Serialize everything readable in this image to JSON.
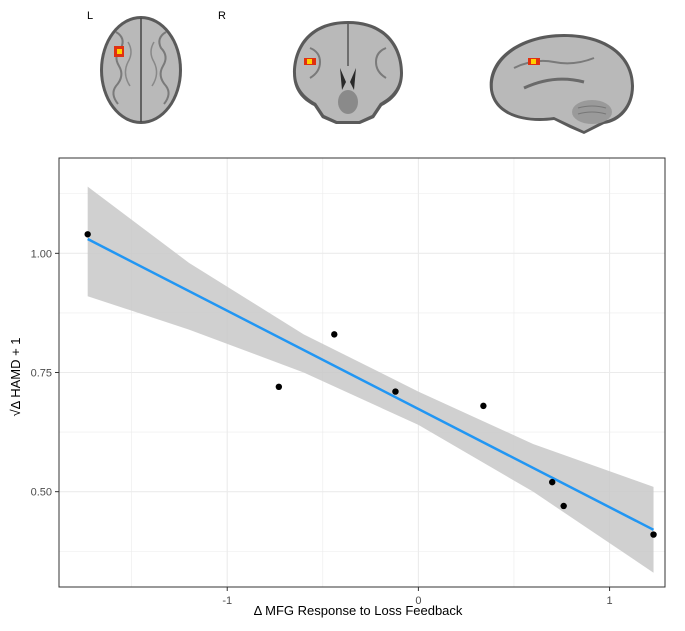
{
  "brain_panel": {
    "left_label": "L",
    "right_label": "R",
    "slices": [
      "axial-slice",
      "coronal-slice",
      "sagittal-slice"
    ]
  },
  "chart_data": {
    "type": "scatter",
    "title": "",
    "xlabel": "Δ MFG Response to Loss Feedback",
    "ylabel": "√Δ HAMD + 1",
    "xlim": [
      -1.88,
      1.29
    ],
    "ylim": [
      0.3,
      1.2
    ],
    "x_ticks": [
      -1,
      0,
      1
    ],
    "x_tick_labels": [
      "-1",
      "0",
      "1"
    ],
    "y_ticks": [
      0.5,
      0.75,
      1.0
    ],
    "y_tick_labels": [
      "0.50",
      "0.75",
      "1.00"
    ],
    "grid": true,
    "points": [
      {
        "x": -1.73,
        "y": 1.04
      },
      {
        "x": -0.73,
        "y": 0.72
      },
      {
        "x": -0.44,
        "y": 0.83
      },
      {
        "x": -0.12,
        "y": 0.71
      },
      {
        "x": 0.34,
        "y": 0.68
      },
      {
        "x": 0.7,
        "y": 0.52
      },
      {
        "x": 0.76,
        "y": 0.47
      },
      {
        "x": 1.23,
        "y": 0.41
      }
    ],
    "fit_line": {
      "x": [
        -1.73,
        1.23
      ],
      "y": [
        1.03,
        0.42
      ]
    },
    "confidence_band": {
      "x": [
        -1.73,
        -1.2,
        -0.6,
        0.0,
        0.6,
        1.23
      ],
      "upper": [
        1.14,
        0.98,
        0.83,
        0.71,
        0.6,
        0.51
      ],
      "lower": [
        0.91,
        0.84,
        0.75,
        0.64,
        0.5,
        0.33
      ]
    },
    "colors": {
      "fit_line": "#2196F3",
      "band": "#c8c8c8",
      "point": "#000000",
      "grid": "#ebebeb",
      "panel_border": "#333333"
    }
  }
}
